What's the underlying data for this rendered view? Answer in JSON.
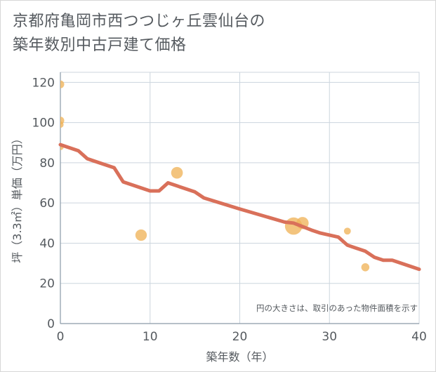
{
  "title": {
    "line1": "京都府亀岡市西つつじヶ丘雲仙台の",
    "line2": "築年数別中古戸建て価格"
  },
  "chart_data": {
    "type": "scatter",
    "xlabel": "築年数（年）",
    "ylabel": "坪（3.3㎡）単価（万円）",
    "xlim": [
      0,
      40
    ],
    "ylim": [
      0,
      125
    ],
    "x_ticks": [
      0,
      10,
      20,
      30,
      40
    ],
    "y_ticks": [
      0,
      20,
      40,
      60,
      80,
      100,
      120
    ],
    "grid": true,
    "note": "円の大きさは、取引のあった物件面積を示す",
    "colors": {
      "bubble": "#f0b45a",
      "trend": "#d9705a",
      "grid": "#ccd5de"
    },
    "bubbles": [
      {
        "x": 0,
        "y": 119,
        "size": 1
      },
      {
        "x": 0,
        "y": 101,
        "size": 1
      },
      {
        "x": 0,
        "y": 99,
        "size": 0.7
      },
      {
        "x": 0,
        "y": 88,
        "size": 0.8
      },
      {
        "x": 9,
        "y": 44,
        "size": 2.2
      },
      {
        "x": 13,
        "y": 75,
        "size": 2.3
      },
      {
        "x": 26,
        "y": 48.5,
        "size": 5
      },
      {
        "x": 27,
        "y": 50,
        "size": 2.5
      },
      {
        "x": 32,
        "y": 46,
        "size": 0.8
      },
      {
        "x": 34,
        "y": 28,
        "size": 1.1
      }
    ],
    "trend": {
      "x": [
        0,
        2,
        3,
        5,
        6,
        7,
        10,
        11,
        12,
        15,
        16,
        20,
        25,
        26,
        28,
        29,
        30,
        31,
        32,
        34,
        35,
        36,
        37,
        40
      ],
      "y": [
        89,
        86,
        82,
        79,
        77.5,
        70.5,
        66,
        66,
        70,
        65.5,
        62.5,
        57,
        50.5,
        50,
        46.5,
        45,
        44,
        43,
        39,
        36,
        33,
        31.5,
        31.5,
        27
      ]
    }
  }
}
